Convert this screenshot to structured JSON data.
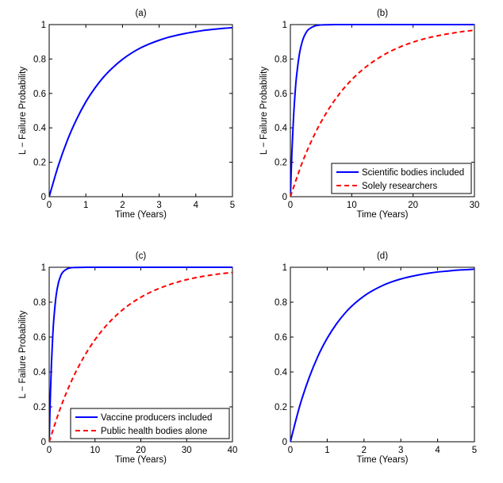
{
  "colors": {
    "blue": "#0000ff",
    "red": "#ff0000",
    "axis": "#000000"
  },
  "chart_data": [
    {
      "type": "line",
      "title": "(a)",
      "xlabel": "Time (Years)",
      "ylabel": "L − Failure Probability",
      "xlim": [
        0,
        5
      ],
      "ylim": [
        0,
        1
      ],
      "xticks": [
        0,
        1,
        2,
        3,
        4,
        5
      ],
      "yticks": [
        0,
        0.2,
        0.4,
        0.6,
        0.8,
        1
      ],
      "ytick_labels": [
        "0",
        "0.2",
        "0.4",
        "0.6",
        "0.8",
        "1"
      ],
      "legend": null,
      "series": [
        {
          "name": "",
          "style": "solid",
          "color": "blue",
          "x": [
            0,
            0.25,
            0.5,
            0.75,
            1,
            1.25,
            1.5,
            1.75,
            2,
            2.25,
            2.5,
            2.75,
            3,
            3.25,
            3.5,
            3.75,
            4,
            4.25,
            4.5,
            4.75,
            5
          ],
          "y": [
            0,
            0.181,
            0.33,
            0.451,
            0.551,
            0.632,
            0.699,
            0.753,
            0.798,
            0.835,
            0.865,
            0.889,
            0.909,
            0.926,
            0.939,
            0.95,
            0.959,
            0.967,
            0.973,
            0.978,
            0.982
          ]
        }
      ]
    },
    {
      "type": "line",
      "title": "(b)",
      "xlabel": "Time (Years)",
      "ylabel": "L − Failure Probability",
      "xlim": [
        0,
        30
      ],
      "ylim": [
        0,
        1
      ],
      "xticks": [
        0,
        10,
        20,
        30
      ],
      "yticks": [
        0,
        0.2,
        0.4,
        0.6,
        0.8,
        1
      ],
      "ytick_labels": [
        "0",
        "0.2",
        "0.4",
        "0.6",
        "0.8",
        "1"
      ],
      "legend": "bottom-right",
      "series": [
        {
          "name": "Scientific bodies included",
          "style": "solid",
          "color": "blue",
          "x": [
            0,
            0.25,
            0.5,
            0.75,
            1,
            1.5,
            2,
            2.5,
            3,
            4,
            5,
            6,
            8,
            10,
            15,
            20,
            25,
            30
          ],
          "y": [
            0,
            0.259,
            0.451,
            0.593,
            0.699,
            0.835,
            0.909,
            0.95,
            0.973,
            0.992,
            0.998,
            0.999,
            1,
            1,
            1,
            1,
            1,
            1
          ]
        },
        {
          "name": "Solely researchers",
          "style": "dashed",
          "color": "red",
          "x": [
            0,
            2,
            4,
            6,
            8,
            10,
            12,
            14,
            16,
            18,
            20,
            22,
            24,
            26,
            28,
            30
          ],
          "y": [
            0,
            0.204,
            0.366,
            0.495,
            0.598,
            0.68,
            0.745,
            0.797,
            0.839,
            0.872,
            0.898,
            0.919,
            0.935,
            0.948,
            0.959,
            0.967
          ]
        }
      ]
    },
    {
      "type": "line",
      "title": "(c)",
      "xlabel": "Time (Years)",
      "ylabel": "L − Failure Probability",
      "xlim": [
        0,
        40
      ],
      "ylim": [
        0,
        1
      ],
      "xticks": [
        0,
        10,
        20,
        30,
        40
      ],
      "yticks": [
        0,
        0.2,
        0.4,
        0.6,
        0.8,
        1
      ],
      "ytick_labels": [
        "0",
        "0.2",
        "0.4",
        "0.6",
        "0.8",
        "1"
      ],
      "legend": "bottom-right",
      "series": [
        {
          "name": "Vaccine producers included",
          "style": "solid",
          "color": "blue",
          "x": [
            0,
            0.25,
            0.5,
            0.75,
            1,
            1.5,
            2,
            2.5,
            3,
            4,
            5,
            6,
            8,
            10,
            15,
            20,
            25,
            30,
            35,
            40
          ],
          "y": [
            0,
            0.259,
            0.451,
            0.593,
            0.699,
            0.835,
            0.909,
            0.95,
            0.973,
            0.992,
            0.998,
            0.999,
            1,
            1,
            1,
            1,
            1,
            1,
            1,
            1
          ]
        },
        {
          "name": "Public health bodies alone",
          "style": "dashed",
          "color": "red",
          "x": [
            0,
            2.5,
            5,
            7.5,
            10,
            12.5,
            15,
            17.5,
            20,
            22.5,
            25,
            27.5,
            30,
            32.5,
            35,
            37.5,
            40
          ],
          "y": [
            0,
            0.197,
            0.356,
            0.483,
            0.585,
            0.667,
            0.733,
            0.786,
            0.828,
            0.862,
            0.889,
            0.911,
            0.929,
            0.943,
            0.954,
            0.963,
            0.97
          ]
        }
      ]
    },
    {
      "type": "line",
      "title": "(d)",
      "xlabel": "Time (Years)",
      "ylabel": "",
      "xlim": [
        0,
        5
      ],
      "ylim": [
        0,
        1
      ],
      "xticks": [
        0,
        1,
        2,
        3,
        4,
        5
      ],
      "yticks": [
        0,
        0.2,
        0.4,
        0.6,
        0.8,
        1
      ],
      "ytick_labels": [
        "0",
        "0.2",
        "0.4",
        "0.6",
        "0.8",
        "1"
      ],
      "legend": null,
      "series": [
        {
          "name": "",
          "style": "solid",
          "color": "blue",
          "x": [
            0,
            0.25,
            0.5,
            0.75,
            1,
            1.25,
            1.5,
            1.75,
            2,
            2.25,
            2.5,
            2.75,
            3,
            3.25,
            3.5,
            3.75,
            4,
            4.25,
            4.5,
            4.75,
            5
          ],
          "y": [
            0,
            0.202,
            0.362,
            0.491,
            0.593,
            0.675,
            0.741,
            0.793,
            0.835,
            0.868,
            0.895,
            0.916,
            0.933,
            0.946,
            0.957,
            0.966,
            0.973,
            0.978,
            0.983,
            0.986,
            0.989
          ]
        }
      ]
    }
  ]
}
